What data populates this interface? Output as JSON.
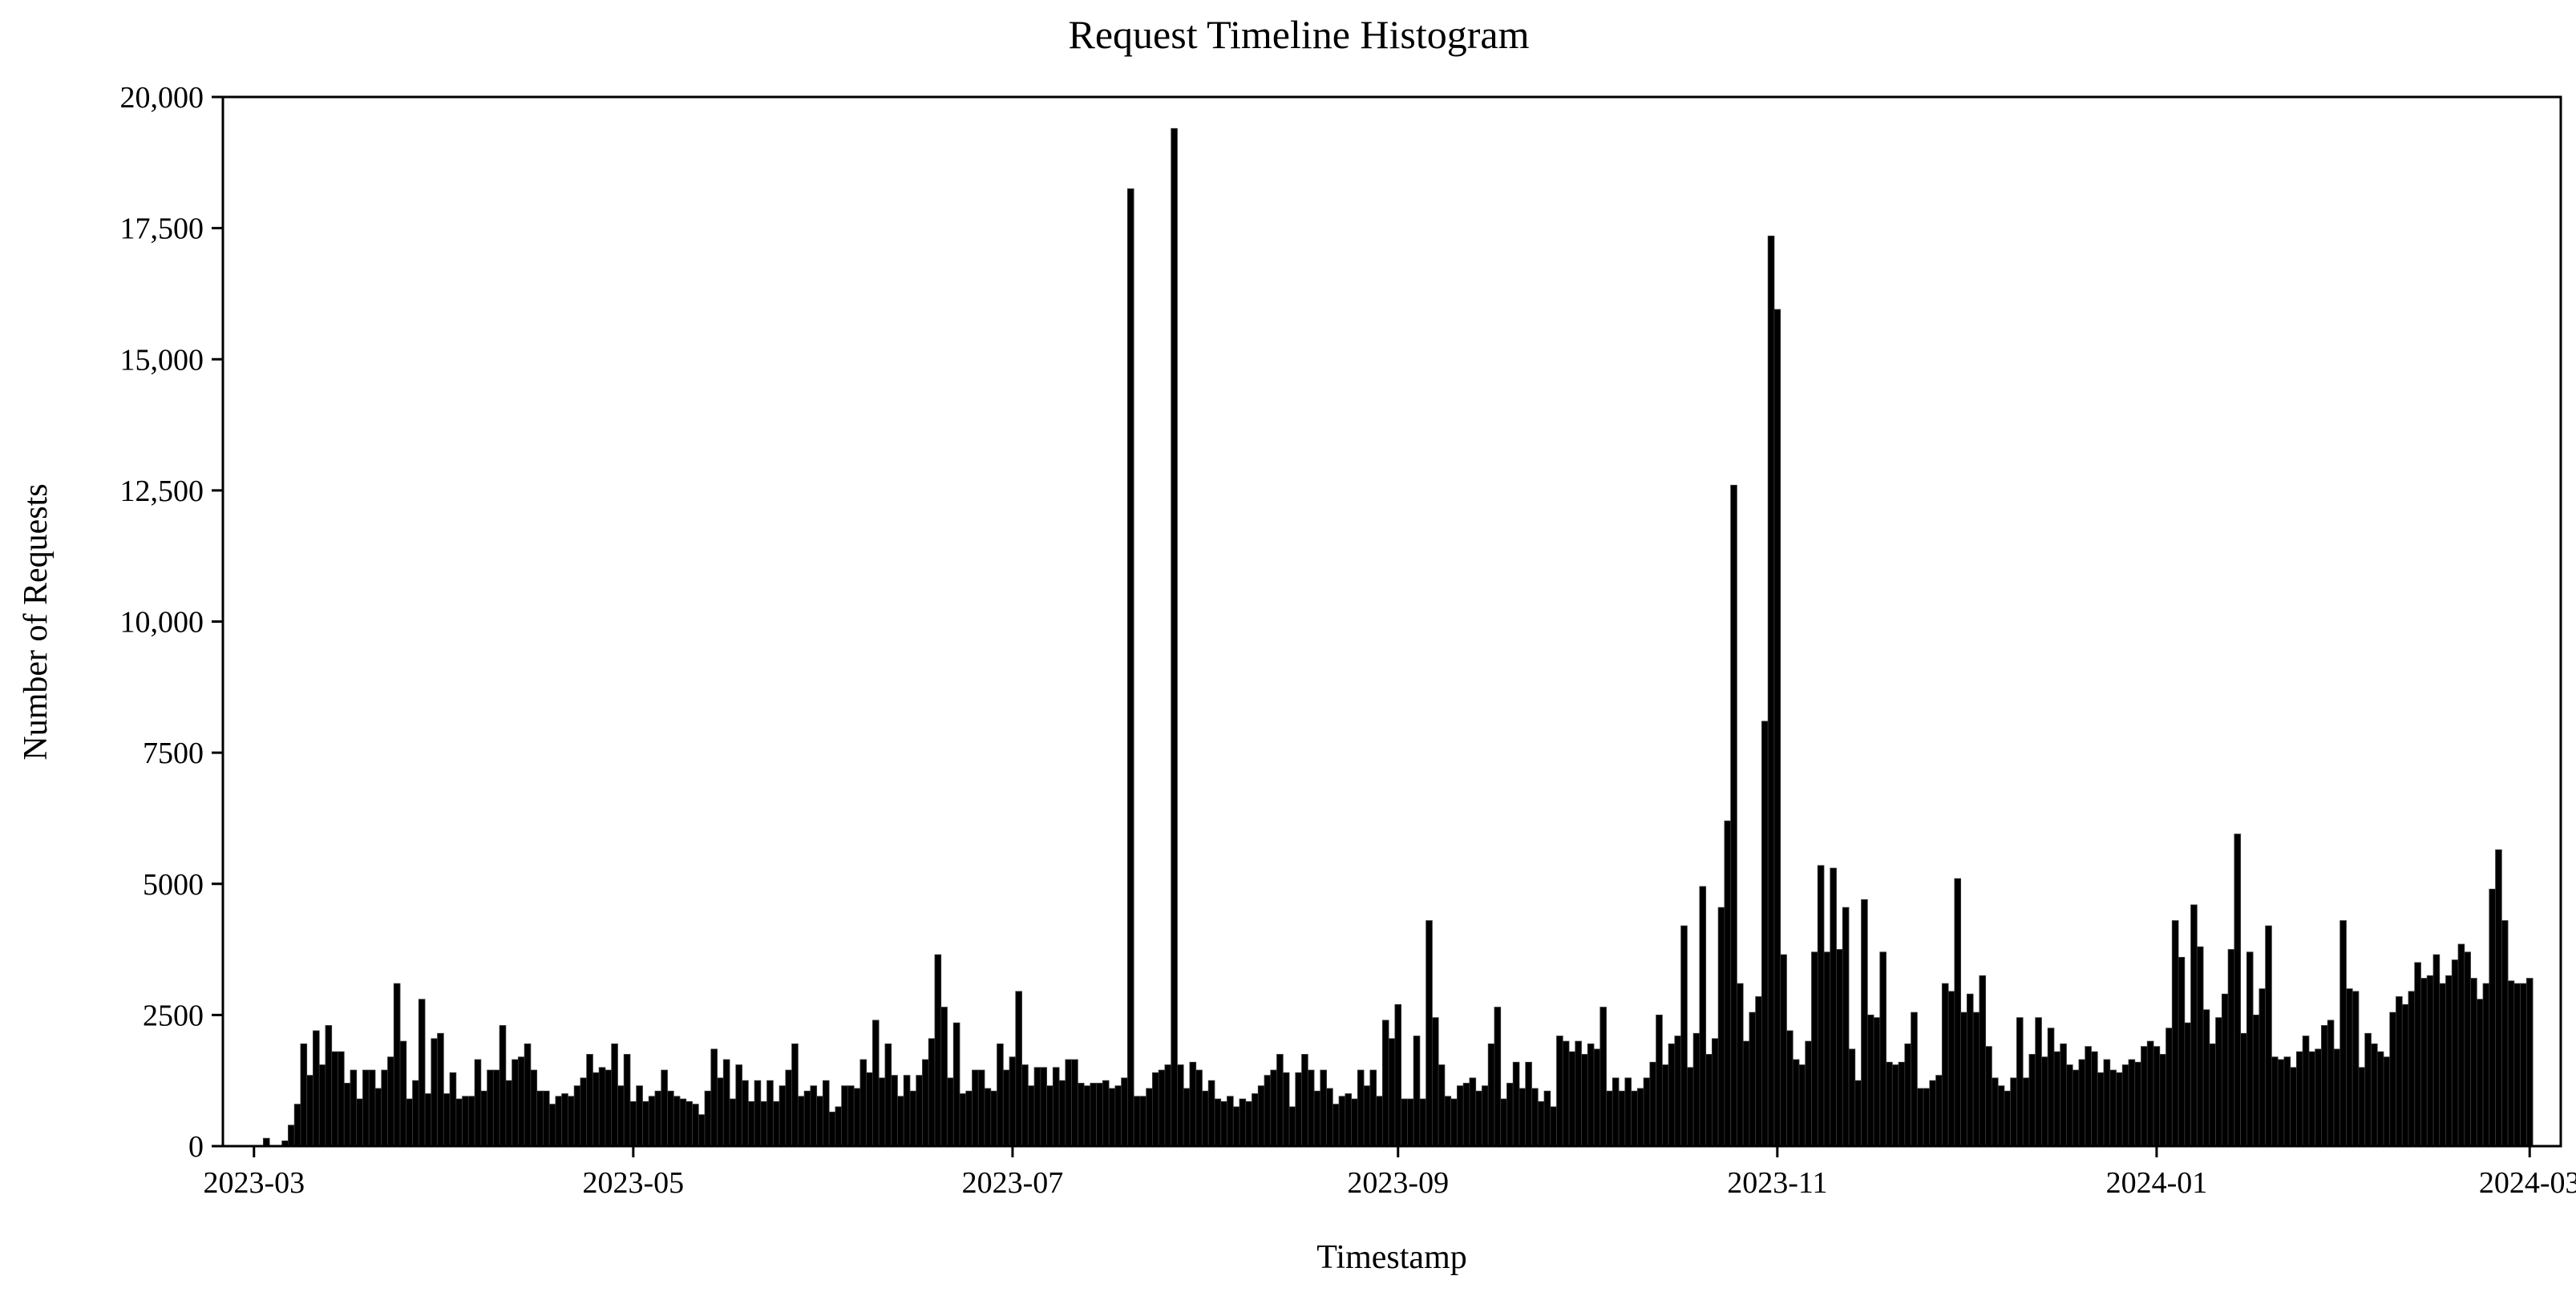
{
  "chart_data": {
    "type": "bar",
    "title": "Request Timeline Histogram",
    "xlabel": "Timestamp",
    "ylabel": "Number of Requests",
    "ylim": [
      0,
      20000
    ],
    "xlim": [
      "2023-02-24",
      "2024-03-06"
    ],
    "grid": false,
    "legend": "none",
    "bar_color": "#000000",
    "x_ticks": [
      "2023-03",
      "2023-05",
      "2023-07",
      "2023-09",
      "2023-11",
      "2024-01",
      "2024-03"
    ],
    "y_ticks": [
      "0",
      "2500",
      "5000",
      "7500",
      "10,000",
      "12,500",
      "15,000",
      "17,500",
      "20,000"
    ],
    "bin_width": "1 day",
    "x_start": "2023-03-01",
    "values": [
      0,
      0,
      150,
      0,
      0,
      100,
      400,
      800,
      1950,
      1350,
      2200,
      1550,
      2300,
      1800,
      1800,
      1200,
      1450,
      900,
      1450,
      1450,
      1100,
      1450,
      1700,
      3100,
      2000,
      900,
      1250,
      2800,
      1000,
      2050,
      2150,
      1000,
      1400,
      900,
      950,
      950,
      1650,
      1050,
      1450,
      1450,
      2300,
      1250,
      1650,
      1700,
      1950,
      1450,
      1050,
      1050,
      800,
      950,
      1000,
      950,
      1150,
      1300,
      1750,
      1400,
      1500,
      1450,
      1950,
      1150,
      1750,
      850,
      1150,
      850,
      950,
      1050,
      1450,
      1050,
      950,
      900,
      850,
      800,
      600,
      1050,
      1850,
      1300,
      1650,
      900,
      1550,
      1250,
      850,
      1250,
      850,
      1250,
      850,
      1150,
      1450,
      1950,
      950,
      1050,
      1150,
      950,
      1250,
      650,
      750,
      1150,
      1150,
      1100,
      1650,
      1400,
      2400,
      1300,
      1950,
      1350,
      950,
      1350,
      1050,
      1350,
      1650,
      2050,
      3650,
      2650,
      1300,
      2350,
      1000,
      1050,
      1450,
      1450,
      1100,
      1050,
      1950,
      1450,
      1700,
      2950,
      1550,
      1150,
      1500,
      1500,
      1150,
      1500,
      1250,
      1650,
      1650,
      1200,
      1150,
      1200,
      1200,
      1250,
      1100,
      1150,
      1300,
      18250,
      950,
      950,
      1100,
      1400,
      1450,
      1550,
      19400,
      1550,
      1100,
      1600,
      1450,
      1050,
      1250,
      900,
      850,
      950,
      750,
      900,
      850,
      1000,
      1150,
      1350,
      1450,
      1750,
      1400,
      750,
      1400,
      1750,
      1450,
      1050,
      1450,
      1100,
      800,
      950,
      1000,
      900,
      1450,
      1150,
      1450,
      950,
      2400,
      2050,
      2700,
      900,
      900,
      2100,
      900,
      4300,
      2450,
      1550,
      950,
      900,
      1150,
      1200,
      1300,
      1050,
      1150,
      1950,
      2650,
      900,
      1200,
      1600,
      1100,
      1600,
      1100,
      850,
      1050,
      750,
      2100,
      2000,
      1800,
      2000,
      1750,
      1950,
      1850,
      2650,
      1050,
      1300,
      1050,
      1300,
      1050,
      1100,
      1300,
      1600,
      2500,
      1550,
      1950,
      2100,
      4200,
      1500,
      2150,
      4950,
      1750,
      2050,
      4550,
      6200,
      12600,
      3100,
      2000,
      2550,
      2850,
      8100,
      17350,
      15950,
      3650,
      2200,
      1650,
      1550,
      2000,
      3700,
      5350,
      3700,
      5300,
      3750,
      4550,
      1850,
      1250,
      4700,
      2500,
      2450,
      3700,
      1600,
      1550,
      1600,
      1950,
      2550,
      1100,
      1100,
      1250,
      1350,
      3100,
      2950,
      5100,
      2550,
      2900,
      2550,
      3250,
      1900,
      1300,
      1150,
      1050,
      1300,
      2450,
      1300,
      1750,
      2450,
      1700,
      2250,
      1800,
      1950,
      1550,
      1450,
      1650,
      1900,
      1800,
      1400,
      1650,
      1450,
      1400,
      1550,
      1650,
      1600,
      1900,
      2000,
      1900,
      1750,
      2250,
      4300,
      3600,
      2350,
      4600,
      3800,
      2600,
      1950,
      2450,
      2900,
      3750,
      5950,
      2150,
      3700,
      2500,
      3000,
      4200,
      1700,
      1650,
      1700,
      1500,
      1800,
      2100,
      1800,
      1850,
      2300,
      2400,
      1850,
      4300,
      3000,
      2950,
      1500,
      2150,
      1950,
      1800,
      1700,
      2550,
      2850,
      2700,
      2950,
      3500,
      3200,
      3250,
      3650,
      3100,
      3250,
      3550,
      3850,
      3700,
      3200,
      2800,
      3100,
      4900,
      5650,
      4300,
      3150,
      3100,
      3100,
      3200
    ]
  }
}
